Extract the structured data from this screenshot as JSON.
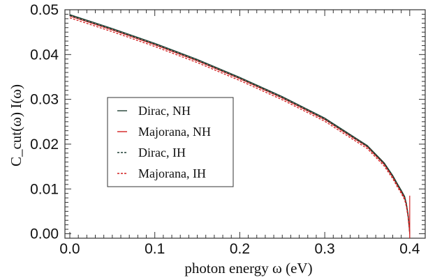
{
  "chart_data": {
    "type": "line",
    "xlabel": "photon energy ω (eV)",
    "ylabel": "C_cut(ω) I(ω)",
    "xlim": [
      0.0,
      0.41
    ],
    "ylim": [
      -0.001,
      0.05
    ],
    "x_ticks": [
      0.0,
      0.1,
      0.2,
      0.3,
      0.4
    ],
    "y_ticks": [
      0.0,
      0.01,
      0.02,
      0.03,
      0.04,
      0.05
    ],
    "x_tick_labels": [
      "0.0",
      "0.1",
      "0.2",
      "0.3",
      "0.4"
    ],
    "y_tick_labels": [
      "0.00",
      "0.01",
      "0.02",
      "0.03",
      "0.04",
      "0.05"
    ],
    "grid": false,
    "legend_position": "center-left",
    "colors": {
      "dirac": "#1f3f33",
      "majorana": "#d21f1f",
      "axis": "#333333"
    },
    "series": [
      {
        "name": "Dirac, NH",
        "style": "solid",
        "color": "#1f3f33",
        "x": [
          0.0,
          0.05,
          0.1,
          0.15,
          0.2,
          0.25,
          0.3,
          0.35,
          0.37,
          0.38,
          0.385,
          0.39,
          0.394,
          0.396,
          0.398,
          0.3995,
          0.4
        ],
        "y": [
          0.0489,
          0.0458,
          0.0425,
          0.0389,
          0.0349,
          0.0306,
          0.0258,
          0.0197,
          0.0158,
          0.013,
          0.0113,
          0.0097,
          0.0083,
          0.0068,
          0.0044,
          0.0015,
          0.0
        ]
      },
      {
        "name": "Majorana, NH",
        "style": "solid",
        "color": "#d21f1f",
        "x": [
          0.0,
          0.05,
          0.1,
          0.15,
          0.2,
          0.25,
          0.3,
          0.35,
          0.37,
          0.38,
          0.385,
          0.39,
          0.394,
          0.396,
          0.398,
          0.3995,
          0.4
        ],
        "y": [
          0.0486,
          0.0455,
          0.0422,
          0.0386,
          0.0346,
          0.0303,
          0.0255,
          0.0194,
          0.0155,
          0.0127,
          0.011,
          0.0094,
          0.008,
          0.0065,
          0.0041,
          0.0013,
          0.0
        ]
      },
      {
        "name": "Dirac, IH",
        "style": "dashed",
        "color": "#1f3f33",
        "x": [
          0.0,
          0.05,
          0.1,
          0.15,
          0.2,
          0.25,
          0.3,
          0.35,
          0.37,
          0.38,
          0.385,
          0.39,
          0.394,
          0.396,
          0.398,
          0.3995,
          0.4
        ],
        "y": [
          0.0487,
          0.0456,
          0.0423,
          0.0387,
          0.0347,
          0.0304,
          0.0256,
          0.0195,
          0.0156,
          0.0128,
          0.0111,
          0.0095,
          0.0081,
          0.0066,
          0.0042,
          0.0013,
          0.0
        ]
      },
      {
        "name": "Majorana, IH",
        "style": "dashed",
        "color": "#d21f1f",
        "x": [
          0.0,
          0.05,
          0.1,
          0.15,
          0.2,
          0.25,
          0.3,
          0.35,
          0.37,
          0.38,
          0.385,
          0.39,
          0.394,
          0.396,
          0.398,
          0.3995,
          0.4
        ],
        "y": [
          0.0482,
          0.0451,
          0.0418,
          0.0382,
          0.0342,
          0.0299,
          0.0251,
          0.019,
          0.0151,
          0.0123,
          0.0106,
          0.009,
          0.0076,
          0.0061,
          0.0037,
          0.001,
          0.0
        ]
      }
    ]
  }
}
